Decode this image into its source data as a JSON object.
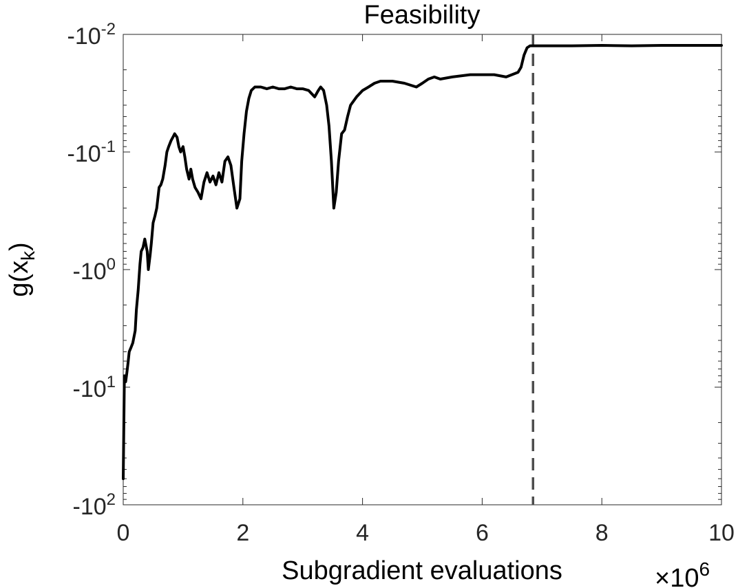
{
  "chart_data": {
    "type": "line",
    "title": "Feasibility",
    "xlabel": "Subgradient evaluations",
    "ylabel": "g(x_k)",
    "ylabel_base": "g(x",
    "ylabel_sub": "k",
    "ylabel_close": ")",
    "x_exponent_label": "×10",
    "x_exponent": "6",
    "xlim": [
      0,
      10
    ],
    "ylim": [
      -100,
      -0.01
    ],
    "yscale": "negative-log",
    "x_ticks": [
      0,
      2,
      4,
      6,
      8,
      10
    ],
    "x_tick_labels": [
      "0",
      "2",
      "4",
      "6",
      "8",
      "10"
    ],
    "y_ticks": [
      -0.01,
      -0.1,
      -1,
      -10,
      -100
    ],
    "y_tick_labels": [
      {
        "base": "-10",
        "exp": "-2"
      },
      {
        "base": "-10",
        "exp": "-1"
      },
      {
        "base": "-10",
        "exp": "0"
      },
      {
        "base": "-10",
        "exp": "1"
      },
      {
        "base": "-10",
        "exp": "2"
      }
    ],
    "grid": false,
    "vline": {
      "x": 6.85,
      "style": "dashed",
      "color": "#4d4d4d"
    },
    "line_color": "#000000",
    "series": [
      {
        "x": [
          0.0,
          0.02,
          0.04,
          0.06,
          0.08,
          0.1,
          0.13,
          0.16,
          0.2,
          0.22,
          0.25,
          0.28,
          0.3,
          0.33,
          0.36,
          0.4,
          0.42,
          0.45,
          0.47,
          0.5,
          0.53,
          0.56,
          0.6,
          0.63,
          0.66,
          0.7,
          0.73,
          0.76,
          0.8,
          0.83,
          0.86,
          0.9,
          0.93,
          0.96,
          1.0,
          1.03,
          1.06,
          1.1,
          1.13,
          1.16,
          1.2,
          1.25,
          1.3,
          1.35,
          1.4,
          1.45,
          1.5,
          1.55,
          1.6,
          1.65,
          1.7,
          1.75,
          1.8,
          1.85,
          1.9,
          1.95,
          1.98,
          2.02,
          2.06,
          2.1,
          2.14,
          2.2,
          2.3,
          2.4,
          2.5,
          2.6,
          2.7,
          2.8,
          2.9,
          3.0,
          3.1,
          3.2,
          3.26,
          3.3,
          3.35,
          3.4,
          3.44,
          3.48,
          3.52,
          3.56,
          3.6,
          3.65,
          3.7,
          3.75,
          3.8,
          3.9,
          4.0,
          4.1,
          4.2,
          4.3,
          4.5,
          4.7,
          4.9,
          5.0,
          5.1,
          5.2,
          5.3,
          5.5,
          5.8,
          6.0,
          6.2,
          6.4,
          6.6,
          6.65,
          6.7,
          6.75,
          6.8,
          6.9,
          7.0,
          7.5,
          8.0,
          8.5,
          9.0,
          9.5,
          10.0
        ],
        "y": [
          -60,
          -8,
          -9,
          -7.6,
          -6.2,
          -5,
          -4.6,
          -4.2,
          -3.3,
          -2.2,
          -1.5,
          -0.9,
          -0.7,
          -0.65,
          -0.55,
          -0.7,
          -1.0,
          -0.75,
          -0.6,
          -0.4,
          -0.35,
          -0.3,
          -0.2,
          -0.19,
          -0.17,
          -0.13,
          -0.1,
          -0.09,
          -0.08,
          -0.075,
          -0.07,
          -0.075,
          -0.09,
          -0.1,
          -0.09,
          -0.11,
          -0.14,
          -0.17,
          -0.14,
          -0.17,
          -0.2,
          -0.22,
          -0.25,
          -0.18,
          -0.15,
          -0.18,
          -0.16,
          -0.19,
          -0.15,
          -0.18,
          -0.12,
          -0.11,
          -0.13,
          -0.2,
          -0.3,
          -0.25,
          -0.12,
          -0.07,
          -0.045,
          -0.035,
          -0.03,
          -0.028,
          -0.028,
          -0.029,
          -0.028,
          -0.029,
          -0.029,
          -0.028,
          -0.029,
          -0.029,
          -0.03,
          -0.034,
          -0.03,
          -0.028,
          -0.03,
          -0.04,
          -0.06,
          -0.12,
          -0.3,
          -0.22,
          -0.12,
          -0.07,
          -0.065,
          -0.05,
          -0.04,
          -0.034,
          -0.03,
          -0.028,
          -0.026,
          -0.025,
          -0.025,
          -0.026,
          -0.028,
          -0.026,
          -0.024,
          -0.023,
          -0.024,
          -0.023,
          -0.022,
          -0.022,
          -0.022,
          -0.023,
          -0.021,
          -0.019,
          -0.015,
          -0.013,
          -0.0125,
          -0.0125,
          -0.0125,
          -0.0125,
          -0.0124,
          -0.0125,
          -0.0124,
          -0.0124,
          -0.0124
        ]
      }
    ]
  }
}
